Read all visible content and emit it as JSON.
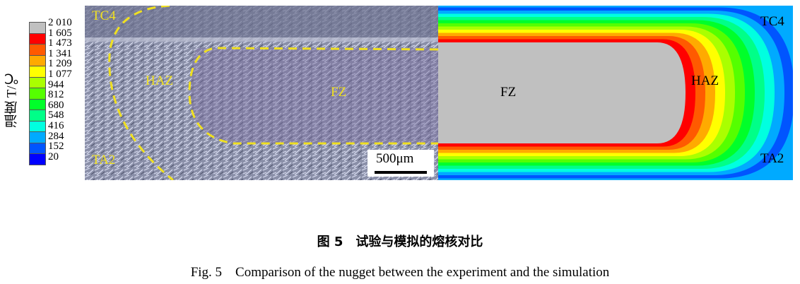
{
  "legend": {
    "title": "温度 T/℃",
    "ticks": [
      "2 010",
      "1 605",
      "1 473",
      "1 341",
      "1 209",
      "1 077",
      "944",
      "812",
      "680",
      "548",
      "416",
      "284",
      "152",
      "20"
    ],
    "colors": [
      "#c0c0c0",
      "#ff0000",
      "#ff5a00",
      "#ffaa00",
      "#ffff00",
      "#aaff00",
      "#55ff00",
      "#00ff2a",
      "#00ff88",
      "#00ffe0",
      "#00aaff",
      "#0055ff",
      "#0000ff"
    ]
  },
  "micrograph": {
    "labels": {
      "tc4": "TC4",
      "haz": "HAZ",
      "fz": "FZ",
      "ta2": "TA2"
    },
    "scale_bar": "500μm",
    "boundary_color": "#f0e020"
  },
  "simulation": {
    "labels": {
      "tc4": "TC4",
      "haz": "HAZ",
      "fz": "FZ",
      "ta2": "TA2"
    }
  },
  "caption": {
    "cn": "图 5　试验与模拟的熔核对比",
    "en": "Fig. 5　Comparison of the nugget between the experiment and the simulation"
  }
}
